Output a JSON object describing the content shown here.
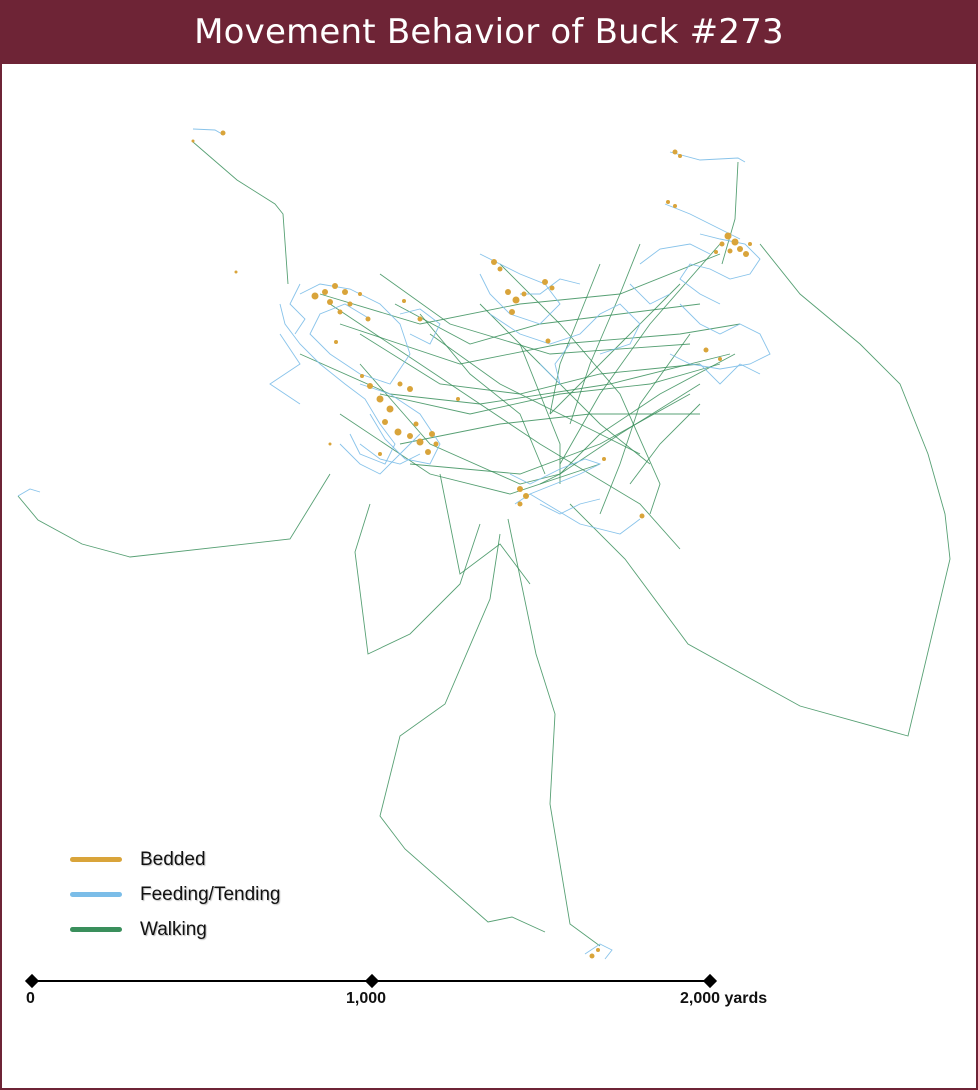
{
  "title": "Movement Behavior of Buck #273",
  "colors": {
    "header": "#6e2436",
    "bedded": "#d9a43a",
    "feeding": "#7bbde8",
    "walking": "#3a8f5c"
  },
  "legend": [
    {
      "label": "Bedded",
      "color": "#d9a43a"
    },
    {
      "label": "Feeding/Tending",
      "color": "#7bbde8"
    },
    {
      "label": "Walking",
      "color": "#3a8f5c"
    }
  ],
  "scale_bar": {
    "ticks": [
      "0",
      "1,000",
      "2,000 yards"
    ]
  }
}
